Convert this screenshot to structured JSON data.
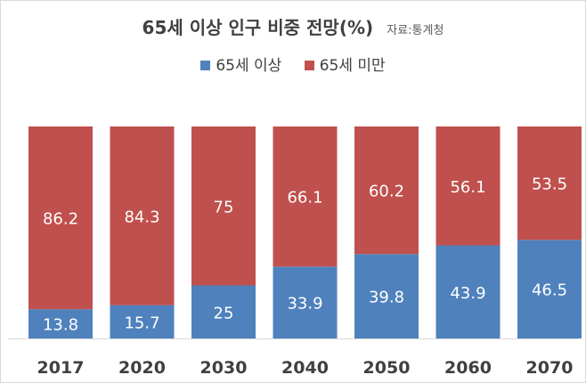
{
  "chart_data": {
    "type": "bar",
    "stacked": true,
    "title": "65세 이상 인구 비중 전망(%)",
    "source": "자료:통계청",
    "categories": [
      "2017",
      "2020",
      "2030",
      "2040",
      "2050",
      "2060",
      "2070"
    ],
    "series": [
      {
        "name": "65세 이상",
        "color": "#4f81bd",
        "values": [
          13.8,
          15.7,
          25,
          33.9,
          39.8,
          43.9,
          46.5
        ]
      },
      {
        "name": "65세 미만",
        "color": "#c0504d",
        "values": [
          86.2,
          84.3,
          75,
          66.1,
          60.2,
          56.1,
          53.5
        ]
      }
    ],
    "ylim": [
      0,
      100
    ],
    "grid": false,
    "legend_position": "top"
  }
}
